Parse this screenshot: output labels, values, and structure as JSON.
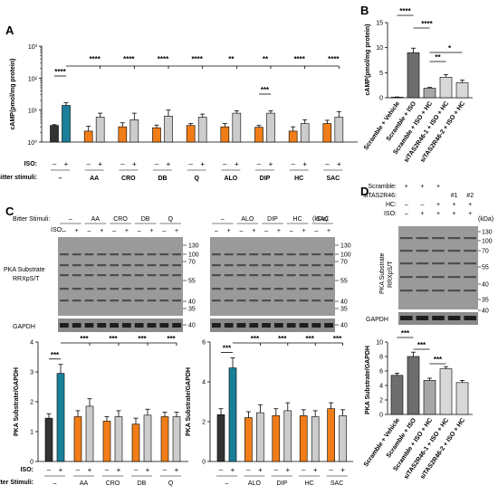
{
  "panel_labels": {
    "A": "A",
    "B": "B",
    "C": "C",
    "D": "D"
  },
  "blot_text": {
    "bitter_stimuli_label": "Bitter Stimuli:",
    "iso_label": "ISO:",
    "kda": "(kDa)",
    "pka_line1": "PKA Substrate",
    "pka_line2": "RRXpS/T",
    "gapdh": "GAPDH",
    "markers": [
      "130",
      "100",
      "70",
      "55",
      "40",
      "35"
    ],
    "gapdh_marker": "40",
    "left_groups": [
      "–",
      "AA",
      "CRO",
      "DB",
      "Q"
    ],
    "right_groups": [
      "–",
      "ALO",
      "DIP",
      "HC",
      "SAC"
    ],
    "iso_signs": [
      "–",
      "+"
    ],
    "d_rows": [
      {
        "label": "Scramble:",
        "signs": [
          "+",
          "+",
          "+",
          "",
          ""
        ]
      },
      {
        "label": "siTAS2R46:",
        "signs": [
          "",
          "",
          "",
          "#1",
          "#2"
        ]
      },
      {
        "label": "HC:",
        "signs": [
          "–",
          "–",
          "+",
          "+",
          "+"
        ]
      },
      {
        "label": "ISO:",
        "signs": [
          "–",
          "+",
          "+",
          "+",
          "+"
        ]
      }
    ]
  },
  "colors": {
    "dark": "#333333",
    "teal": "#1a7f99",
    "orange": "#f07d17",
    "light": "#cccccc",
    "d_dark": "#6e6e6e",
    "d_mid": "#a7a7a7",
    "d_light": "#d8d8d8"
  },
  "chart_data": [
    {
      "panel": "A",
      "type": "bar",
      "log_scale": true,
      "ylabel": "cAMP(pmol/mg protein)",
      "ylim": [
        1,
        1000
      ],
      "ytick_labels": [
        "10⁰",
        "10¹",
        "10²",
        "10³"
      ],
      "row_labels": {
        "iso": "ISO:",
        "stim": "Bitter stimuli:"
      },
      "groups": [
        "–",
        "AA",
        "CRO",
        "DB",
        "Q",
        "ALO",
        "DIP",
        "HC",
        "SAC"
      ],
      "iso_signs": [
        "–",
        "+"
      ],
      "series": [
        {
          "iso": "–",
          "values": [
            3.3,
            2.2,
            3.0,
            2.8,
            3.3,
            3.0,
            2.9,
            2.2,
            3.8
          ],
          "errors": [
            0.2,
            0.9,
            1.0,
            0.6,
            0.5,
            0.8,
            0.4,
            0.8,
            1.0
          ]
        },
        {
          "iso": "+",
          "values": [
            14,
            6.0,
            5.0,
            6.5,
            6.0,
            8.0,
            8.0,
            3.8,
            6.0
          ],
          "errors": [
            3,
            2.0,
            3.0,
            3.5,
            1.5,
            1.5,
            1.5,
            1.2,
            3.0
          ]
        }
      ],
      "significance": [
        {
          "label": "****",
          "between": "–: – vs +"
        },
        {
          "label": "****",
          "group": "AA"
        },
        {
          "label": "****",
          "group": "CRO"
        },
        {
          "label": "****",
          "group": "DB"
        },
        {
          "label": "****",
          "group": "Q"
        },
        {
          "label": "**",
          "group": "ALO"
        },
        {
          "label": "**",
          "group": "DIP"
        },
        {
          "label": "****",
          "group": "HC"
        },
        {
          "label": "****",
          "group": "SAC"
        },
        {
          "label": "***",
          "between": "DIP: – vs +"
        }
      ]
    },
    {
      "panel": "B",
      "type": "bar",
      "ylabel": "cAMP(pmol/mg protein)",
      "ylim": [
        0,
        15
      ],
      "yticks": [
        0,
        5,
        10,
        15
      ],
      "categories": [
        "Scramble + Vehicle",
        "Scramble + ISO",
        "Scramble + ISO + HC",
        "siTAS2R46-1 + ISO + HC",
        "siTAS2R46-2 + ISO + HC"
      ],
      "values": [
        0.1,
        9.0,
        1.9,
        4.1,
        3.0
      ],
      "errors": [
        0.05,
        0.9,
        0.15,
        0.5,
        0.5
      ],
      "significance": [
        "****",
        "****",
        "*",
        "**"
      ]
    },
    {
      "panel": "C-left",
      "type": "bar",
      "ylabel": "PKA Substrate/GAPDH",
      "ylim": [
        0,
        4
      ],
      "yticks": [
        0,
        1,
        2,
        3,
        4
      ],
      "groups": [
        "–",
        "AA",
        "CRO",
        "DB",
        "Q"
      ],
      "row_labels": {
        "iso": "ISO:",
        "stim": "Bitter Stimuli:"
      },
      "series": [
        {
          "iso": "–",
          "values": [
            1.45,
            1.5,
            1.35,
            1.25,
            1.5
          ],
          "errors": [
            0.15,
            0.2,
            0.15,
            0.2,
            0.15
          ]
        },
        {
          "iso": "+",
          "values": [
            2.95,
            1.85,
            1.5,
            1.55,
            1.5
          ],
          "errors": [
            0.3,
            0.25,
            0.2,
            0.2,
            0.15
          ]
        }
      ],
      "significance": [
        "***",
        "***",
        "***",
        "***",
        "***"
      ]
    },
    {
      "panel": "C-right",
      "type": "bar",
      "ylabel": "PKA Substrate/GAPDH",
      "ylim": [
        0,
        6
      ],
      "yticks": [
        0,
        2,
        4,
        6
      ],
      "groups": [
        "–",
        "ALO",
        "DIP",
        "HC",
        "SAC"
      ],
      "series": [
        {
          "iso": "–",
          "values": [
            2.35,
            2.2,
            2.3,
            2.3,
            2.65
          ],
          "errors": [
            0.3,
            0.3,
            0.35,
            0.3,
            0.3
          ]
        },
        {
          "iso": "+",
          "values": [
            4.7,
            2.45,
            2.55,
            2.25,
            2.3
          ],
          "errors": [
            0.5,
            0.4,
            0.4,
            0.3,
            0.3
          ]
        }
      ],
      "significance": [
        "***",
        "***",
        "***",
        "***",
        "***"
      ]
    },
    {
      "panel": "D",
      "type": "bar",
      "ylabel": "PKA Substrate/GAPDH",
      "ylim": [
        0,
        10
      ],
      "yticks": [
        0,
        2,
        4,
        6,
        8,
        10
      ],
      "categories": [
        "Scramble + Vehicle",
        "Scramble + ISO",
        "Scramble + ISO + HC",
        "siTAS2R46-1 + ISO + HC",
        "siTAS2R46-2 + ISO + HC"
      ],
      "values": [
        5.4,
        8.0,
        4.7,
        6.3,
        4.4
      ],
      "errors": [
        0.3,
        0.6,
        0.3,
        0.3,
        0.3
      ],
      "significance": [
        "***",
        "***",
        "***"
      ]
    }
  ]
}
